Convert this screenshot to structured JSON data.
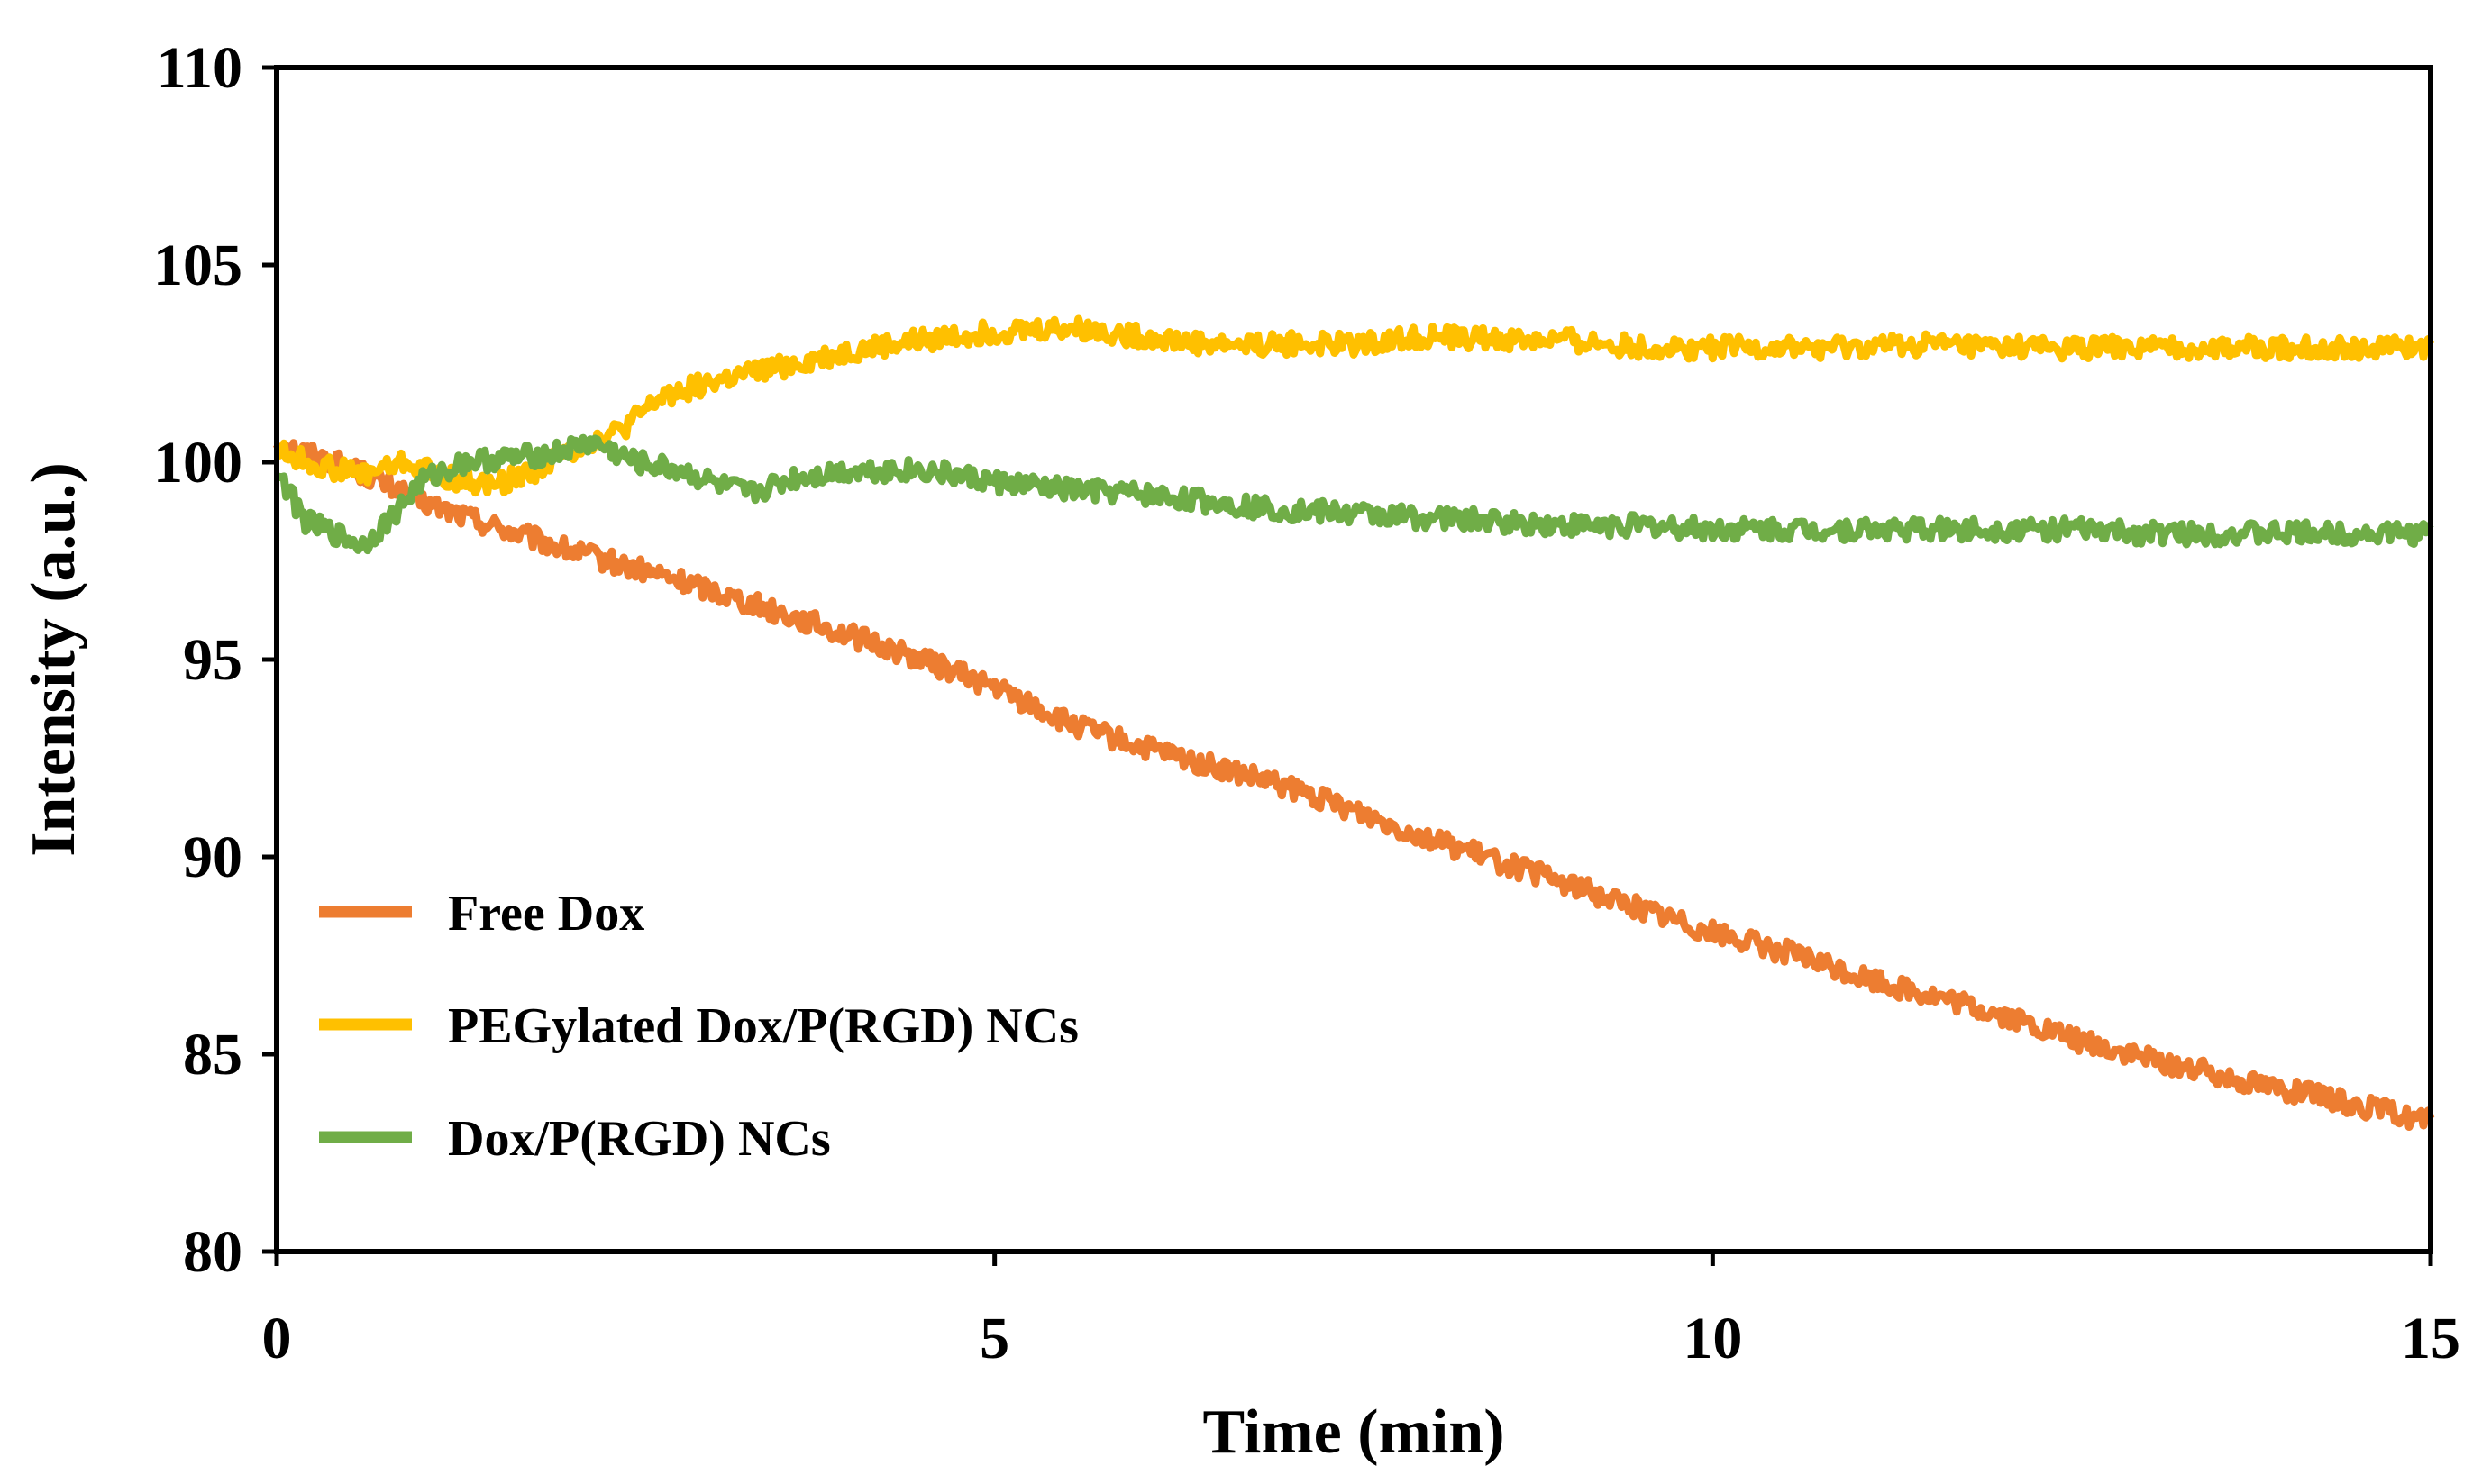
{
  "chart_data": {
    "type": "line",
    "title": "",
    "xlabel": "Time (min)",
    "ylabel": "Intensity (a.u.)",
    "xlim": [
      0,
      15
    ],
    "ylim": [
      80,
      110
    ],
    "xticks": [
      0,
      5,
      10,
      15
    ],
    "yticks": [
      80,
      85,
      90,
      95,
      100,
      105,
      110
    ],
    "grid": false,
    "legend_position": "lower-left",
    "series": [
      {
        "name": "Free Dox",
        "color": "#ED7D31",
        "x": [
          0,
          0.5,
          1,
          1.5,
          2,
          2.5,
          3,
          3.5,
          4,
          4.5,
          5,
          5.5,
          6,
          6.5,
          7,
          7.5,
          8,
          8.5,
          9,
          9.5,
          10,
          10.5,
          11,
          11.5,
          12,
          12.5,
          13,
          13.5,
          14,
          14.5,
          15
        ],
        "values": [
          100.5,
          99.9,
          99.0,
          98.4,
          97.8,
          97.3,
          96.8,
          96.2,
          95.6,
          95.0,
          94.3,
          93.4,
          92.8,
          92.3,
          91.8,
          91.2,
          90.5,
          89.9,
          89.3,
          88.7,
          88.1,
          87.6,
          87.0,
          86.5,
          86.0,
          85.4,
          84.9,
          84.5,
          84.1,
          83.7,
          83.3
        ]
      },
      {
        "name": "PEGylated Dox/P(RGD) NCs",
        "color": "#FFC000",
        "x": [
          0,
          0.3,
          0.6,
          0.9,
          1.2,
          1.5,
          1.8,
          2.1,
          2.4,
          2.7,
          3.0,
          3.5,
          4,
          4.5,
          5,
          5.5,
          6,
          6.5,
          7,
          7.5,
          8,
          8.5,
          9,
          9.5,
          10,
          10.5,
          11,
          11.5,
          12,
          12.5,
          13,
          13.5,
          14,
          14.5,
          15
        ],
        "values": [
          100.3,
          99.9,
          99.7,
          100.0,
          99.6,
          99.4,
          99.8,
          100.4,
          100.8,
          101.7,
          102.0,
          102.4,
          102.8,
          103.1,
          103.3,
          103.4,
          103.2,
          103.0,
          103.0,
          103.0,
          103.2,
          103.1,
          103.1,
          102.9,
          102.9,
          102.9,
          102.9,
          103.0,
          102.9,
          102.9,
          102.9,
          102.9,
          102.9,
          102.9,
          102.9
        ]
      },
      {
        "name": "Dox/P(RGD) NCs",
        "color": "#70AD47",
        "x": [
          0,
          0.2,
          0.4,
          0.6,
          0.8,
          1.0,
          1.3,
          1.6,
          1.9,
          2.2,
          2.5,
          2.8,
          3.1,
          3.3,
          3.6,
          4.0,
          4.5,
          5.0,
          5.5,
          6.0,
          6.5,
          7.0,
          7.5,
          8.0,
          8.5,
          9.0,
          9.5,
          10,
          10.5,
          11,
          11.5,
          12,
          12.5,
          13,
          13.5,
          14,
          14.5,
          15
        ],
        "values": [
          99.8,
          98.5,
          98.2,
          97.9,
          98.6,
          99.5,
          100.0,
          100.1,
          100.2,
          100.5,
          100.0,
          99.8,
          99.4,
          99.2,
          99.6,
          99.8,
          99.8,
          99.5,
          99.3,
          99.2,
          99.0,
          98.8,
          98.7,
          98.6,
          98.5,
          98.4,
          98.4,
          98.3,
          98.3,
          98.3,
          98.3,
          98.3,
          98.3,
          98.2,
          98.2,
          98.2,
          98.2,
          98.2
        ]
      }
    ]
  }
}
